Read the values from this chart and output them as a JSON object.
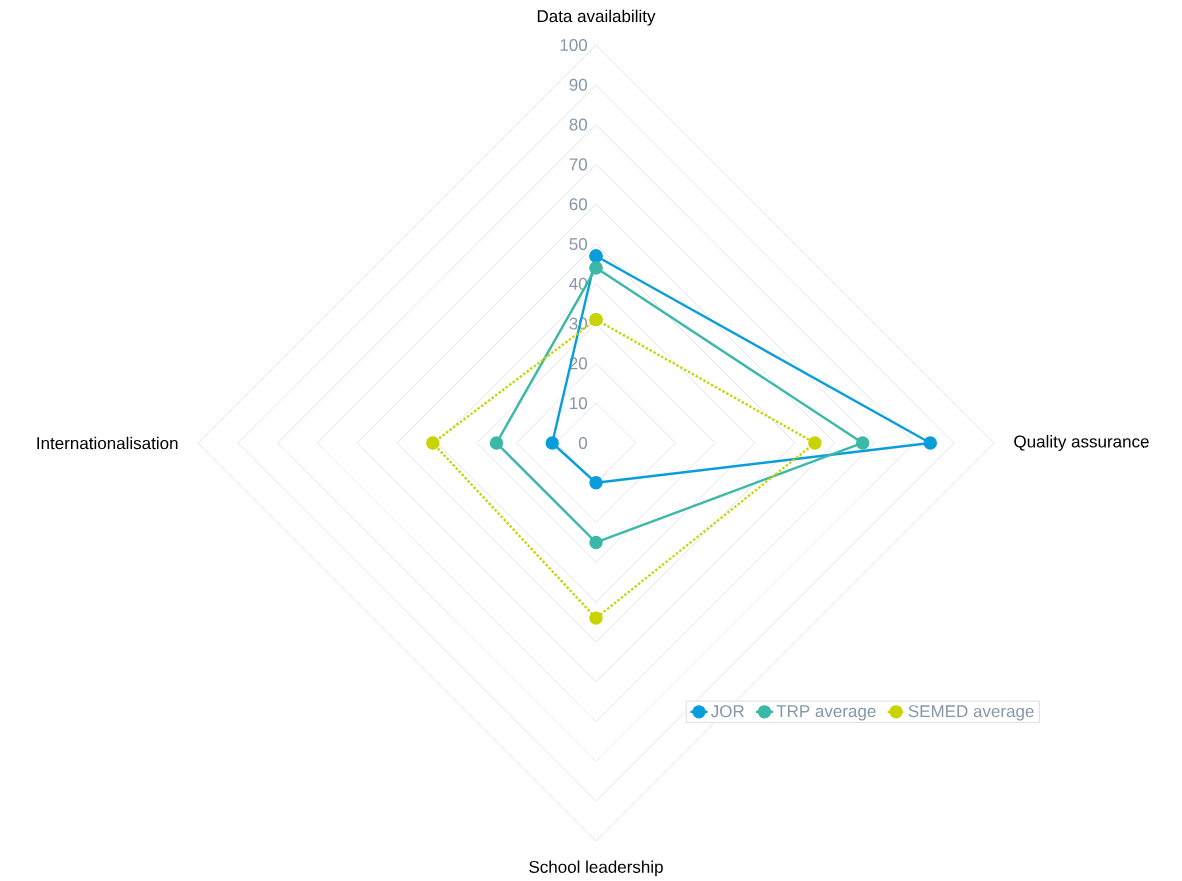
{
  "chart_data": {
    "type": "radar",
    "categories": [
      "Data availability",
      "Quality assurance",
      "School leadership",
      "Internationalisation"
    ],
    "ylim": [
      0,
      100
    ],
    "yticks": [
      0,
      10,
      20,
      30,
      40,
      50,
      60,
      70,
      80,
      90,
      100
    ],
    "grid": true,
    "legend": "bottom right",
    "marker": "circle",
    "series": [
      {
        "name": "JOR",
        "color": "#0a9ddb",
        "line_style": "solid",
        "values": [
          47,
          84,
          10,
          11
        ]
      },
      {
        "name": "TRP average",
        "color": "#3bb8a8",
        "line_style": "solid",
        "values": [
          44,
          67,
          25,
          25
        ]
      },
      {
        "name": "SEMED average",
        "color": "#c8d400",
        "line_style": "dotted",
        "values": [
          31,
          55,
          44,
          41
        ]
      }
    ]
  }
}
